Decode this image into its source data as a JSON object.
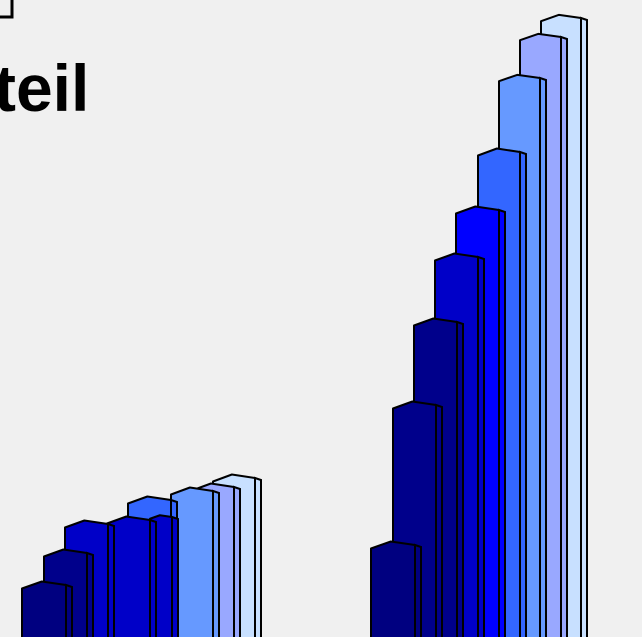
{
  "slide": {
    "title": "teil"
  },
  "colors": {
    "background": "#f0f0f0",
    "outline": "#000000",
    "palette": [
      "#000080",
      "#00008b",
      "#0000c8",
      "#0000ff",
      "#3366ff",
      "#6699ff",
      "#99a8ff",
      "#c8e0ff"
    ]
  }
}
